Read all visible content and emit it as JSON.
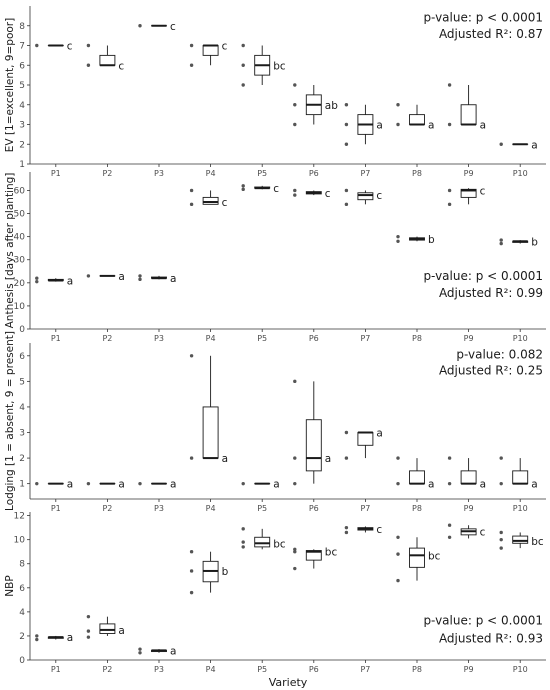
{
  "chart_data": [
    {
      "type": "box",
      "ylabel": "EV [1=excellent, 9=poor]",
      "ylim": [
        1,
        9
      ],
      "yticks": [
        1,
        2,
        3,
        4,
        5,
        6,
        7,
        8
      ],
      "categories": [
        "P1",
        "P2",
        "P3",
        "P4",
        "P5",
        "P6",
        "P7",
        "P8",
        "P9",
        "P10"
      ],
      "p_label": "p-value:",
      "p_value": " p < 0.0001",
      "r2_label": "Adjusted R²:",
      "r2_value": " 0.87",
      "stats_position": "top-right",
      "boxes": [
        {
          "cat": "P1",
          "q1": 7,
          "median": 7,
          "q3": 7,
          "lo": 7,
          "hi": 7,
          "outliers": [
            7
          ],
          "group": "c"
        },
        {
          "cat": "P2",
          "q1": 6,
          "median": 6,
          "q3": 6.5,
          "lo": 6,
          "hi": 7,
          "outliers": [
            6,
            7
          ],
          "group": "c"
        },
        {
          "cat": "P3",
          "q1": 8,
          "median": 8,
          "q3": 8,
          "lo": 8,
          "hi": 8,
          "outliers": [
            8
          ],
          "group": "c"
        },
        {
          "cat": "P4",
          "q1": 6.5,
          "median": 7,
          "q3": 7,
          "lo": 6,
          "hi": 7,
          "outliers": [
            6,
            7
          ],
          "group": "c"
        },
        {
          "cat": "P5",
          "q1": 5.5,
          "median": 6,
          "q3": 6.5,
          "lo": 5,
          "hi": 7,
          "outliers": [
            5,
            6,
            7
          ],
          "group": "bc"
        },
        {
          "cat": "P6",
          "q1": 3.5,
          "median": 4,
          "q3": 4.5,
          "lo": 3,
          "hi": 5,
          "outliers": [
            3,
            4,
            5
          ],
          "group": "ab"
        },
        {
          "cat": "P7",
          "q1": 2.5,
          "median": 3,
          "q3": 3.5,
          "lo": 2,
          "hi": 4,
          "outliers": [
            2,
            3,
            4
          ],
          "group": "a"
        },
        {
          "cat": "P8",
          "q1": 3,
          "median": 3,
          "q3": 3.5,
          "lo": 3,
          "hi": 4,
          "outliers": [
            3,
            4
          ],
          "group": "a"
        },
        {
          "cat": "P9",
          "q1": 3,
          "median": 3,
          "q3": 4,
          "lo": 3,
          "hi": 5,
          "outliers": [
            3,
            5
          ],
          "group": "a"
        },
        {
          "cat": "P10",
          "q1": 2,
          "median": 2,
          "q3": 2,
          "lo": 2,
          "hi": 2,
          "outliers": [
            2
          ],
          "group": "a"
        }
      ]
    },
    {
      "type": "box",
      "ylabel": "Anthesis [days after planting]",
      "ylim": [
        0,
        68
      ],
      "yticks": [
        0,
        10,
        20,
        30,
        40,
        50,
        60
      ],
      "categories": [
        "P1",
        "P2",
        "P3",
        "P4",
        "P5",
        "P6",
        "P7",
        "P8",
        "P9",
        "P10"
      ],
      "p_label": "p-value:",
      "p_value": " p < 0.0001",
      "r2_label": "Adjusted R²:",
      "r2_value": " 0.99",
      "stats_position": "middle-right",
      "boxes": [
        {
          "cat": "P1",
          "q1": 21,
          "median": 21,
          "q3": 21.5,
          "lo": 20.5,
          "hi": 22,
          "outliers": [
            20.5,
            22
          ],
          "group": "a"
        },
        {
          "cat": "P2",
          "q1": 23,
          "median": 23,
          "q3": 23,
          "lo": 23,
          "hi": 23,
          "outliers": [
            23
          ],
          "group": "a"
        },
        {
          "cat": "P3",
          "q1": 22,
          "median": 22,
          "q3": 22.5,
          "lo": 21.5,
          "hi": 23,
          "outliers": [
            21.5,
            23
          ],
          "group": "a"
        },
        {
          "cat": "P4",
          "q1": 54,
          "median": 55,
          "q3": 57,
          "lo": 54,
          "hi": 60,
          "outliers": [
            54,
            60
          ],
          "group": "c"
        },
        {
          "cat": "P5",
          "q1": 61,
          "median": 61,
          "q3": 61.5,
          "lo": 60.5,
          "hi": 62,
          "outliers": [
            60.5,
            62
          ],
          "group": "c"
        },
        {
          "cat": "P6",
          "q1": 58.5,
          "median": 59,
          "q3": 59.5,
          "lo": 58,
          "hi": 60,
          "outliers": [
            58,
            60
          ],
          "group": "c"
        },
        {
          "cat": "P7",
          "q1": 56,
          "median": 58,
          "q3": 59,
          "lo": 54,
          "hi": 60,
          "outliers": [
            54,
            60
          ],
          "group": "c"
        },
        {
          "cat": "P8",
          "q1": 38.5,
          "median": 39,
          "q3": 39.5,
          "lo": 38,
          "hi": 40,
          "outliers": [
            38,
            40
          ],
          "group": "b"
        },
        {
          "cat": "P9",
          "q1": 57,
          "median": 60,
          "q3": 60.5,
          "lo": 54,
          "hi": 61,
          "outliers": [
            54,
            60
          ],
          "group": "c"
        },
        {
          "cat": "P10",
          "q1": 37.5,
          "median": 38,
          "q3": 38,
          "lo": 37,
          "hi": 38.5,
          "outliers": [
            37,
            38.5
          ],
          "group": "b"
        }
      ]
    },
    {
      "type": "box",
      "ylabel": "Lodging [1 = absent, 9 = present]",
      "ylim": [
        0.4,
        6.5
      ],
      "yticks": [
        1,
        2,
        3,
        4,
        5,
        6
      ],
      "categories": [
        "P1",
        "P2",
        "P3",
        "P4",
        "P5",
        "P6",
        "P7",
        "P8",
        "P9",
        "P10"
      ],
      "p_label": "p-value:",
      "p_value": "  0.082",
      "r2_label": "Adjusted R²:",
      "r2_value": "  0.25",
      "stats_position": "top-right",
      "boxes": [
        {
          "cat": "P1",
          "q1": 1,
          "median": 1,
          "q3": 1,
          "lo": 1,
          "hi": 1,
          "outliers": [
            1
          ],
          "group": "a"
        },
        {
          "cat": "P2",
          "q1": 1,
          "median": 1,
          "q3": 1,
          "lo": 1,
          "hi": 1,
          "outliers": [
            1
          ],
          "group": "a"
        },
        {
          "cat": "P3",
          "q1": 1,
          "median": 1,
          "q3": 1,
          "lo": 1,
          "hi": 1,
          "outliers": [
            1
          ],
          "group": "a"
        },
        {
          "cat": "P4",
          "q1": 2,
          "median": 2,
          "q3": 4,
          "lo": 2,
          "hi": 6,
          "outliers": [
            2,
            6
          ],
          "group": "a"
        },
        {
          "cat": "P5",
          "q1": 1,
          "median": 1,
          "q3": 1,
          "lo": 1,
          "hi": 1,
          "outliers": [
            1
          ],
          "group": "a"
        },
        {
          "cat": "P6",
          "q1": 1.5,
          "median": 2,
          "q3": 3.5,
          "lo": 1,
          "hi": 5,
          "outliers": [
            1,
            2,
            5
          ],
          "group": "a"
        },
        {
          "cat": "P7",
          "q1": 2.5,
          "median": 3,
          "q3": 3,
          "lo": 2,
          "hi": 3,
          "outliers": [
            2,
            3
          ],
          "group": "a"
        },
        {
          "cat": "P8",
          "q1": 1,
          "median": 1,
          "q3": 1.5,
          "lo": 1,
          "hi": 2,
          "outliers": [
            1,
            2
          ],
          "group": "a"
        },
        {
          "cat": "P9",
          "q1": 1,
          "median": 1,
          "q3": 1.5,
          "lo": 1,
          "hi": 2,
          "outliers": [
            1,
            2
          ],
          "group": "a"
        },
        {
          "cat": "P10",
          "q1": 1,
          "median": 1,
          "q3": 1.5,
          "lo": 1,
          "hi": 2,
          "outliers": [
            1,
            2
          ],
          "group": "a"
        }
      ]
    },
    {
      "type": "box",
      "ylabel": "NBP",
      "ylim": [
        0,
        12.3
      ],
      "yticks": [
        0,
        2,
        4,
        6,
        8,
        10,
        12
      ],
      "categories": [
        "P1",
        "P2",
        "P3",
        "P4",
        "P5",
        "P6",
        "P7",
        "P8",
        "P9",
        "P10"
      ],
      "xlabel": "Variety",
      "p_label": "p-value:",
      "p_value": " p < 0.0001",
      "r2_label": "Adjusted R²:",
      "r2_value": " 0.93",
      "stats_position": "bottom-right",
      "boxes": [
        {
          "cat": "P1",
          "q1": 1.8,
          "median": 1.9,
          "q3": 1.9,
          "lo": 1.7,
          "hi": 2.0,
          "outliers": [
            1.7,
            2.0
          ],
          "group": "a"
        },
        {
          "cat": "P2",
          "q1": 2.2,
          "median": 2.5,
          "q3": 3.0,
          "lo": 2.0,
          "hi": 3.6,
          "outliers": [
            1.9,
            2.4,
            3.6
          ],
          "group": "a"
        },
        {
          "cat": "P3",
          "q1": 0.7,
          "median": 0.8,
          "q3": 0.8,
          "lo": 0.6,
          "hi": 0.9,
          "outliers": [
            0.6,
            0.9
          ],
          "group": "a"
        },
        {
          "cat": "P4",
          "q1": 6.5,
          "median": 7.4,
          "q3": 8.2,
          "lo": 5.6,
          "hi": 9.0,
          "outliers": [
            5.6,
            7.4,
            9.0
          ],
          "group": "b"
        },
        {
          "cat": "P5",
          "q1": 9.4,
          "median": 9.7,
          "q3": 10.2,
          "lo": 9.2,
          "hi": 10.9,
          "outliers": [
            9.4,
            9.8,
            10.9
          ],
          "group": "bc"
        },
        {
          "cat": "P6",
          "q1": 8.3,
          "median": 9.0,
          "q3": 9.1,
          "lo": 7.6,
          "hi": 9.2,
          "outliers": [
            7.6,
            9.0,
            9.2
          ],
          "group": "bc"
        },
        {
          "cat": "P7",
          "q1": 10.8,
          "median": 10.9,
          "q3": 11.0,
          "lo": 10.6,
          "hi": 11.1,
          "outliers": [
            10.6,
            11.0
          ],
          "group": "c"
        },
        {
          "cat": "P8",
          "q1": 7.7,
          "median": 8.7,
          "q3": 9.3,
          "lo": 6.6,
          "hi": 10.2,
          "outliers": [
            6.6,
            8.8,
            10.2
          ],
          "group": "bc"
        },
        {
          "cat": "P9",
          "q1": 10.4,
          "median": 10.7,
          "q3": 10.9,
          "lo": 10.1,
          "hi": 11.2,
          "outliers": [
            10.2,
            11.2
          ],
          "group": "c"
        },
        {
          "cat": "P10",
          "q1": 9.7,
          "median": 9.9,
          "q3": 10.3,
          "lo": 9.3,
          "hi": 10.6,
          "outliers": [
            9.3,
            10.0,
            10.6
          ],
          "group": "bc"
        }
      ]
    }
  ]
}
